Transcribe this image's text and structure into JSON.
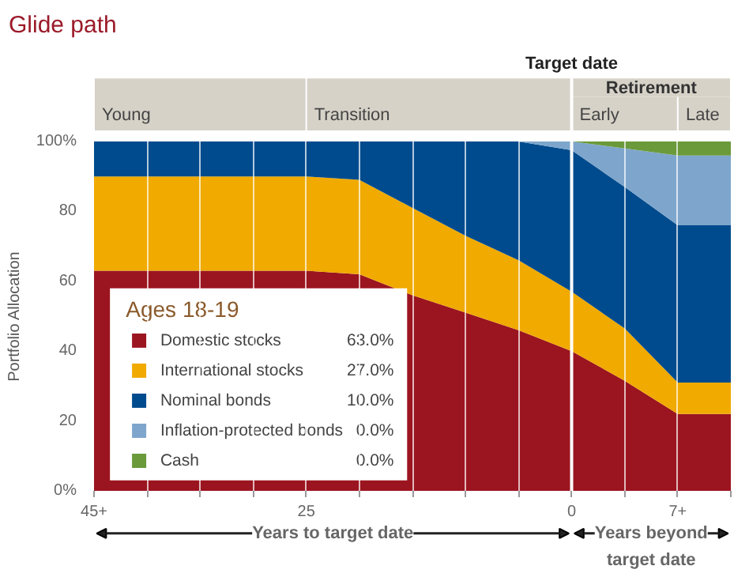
{
  "chart_data": {
    "type": "area",
    "stacked": true,
    "title": "Glide path",
    "ylabel": "Portfolio Allocation",
    "xlabel": "Years to target date",
    "legend_title": "Ages 18-19",
    "legend": "left",
    "grid": "x",
    "categories": [
      "45+",
      null,
      null,
      null,
      "25",
      null,
      null,
      null,
      null,
      "0",
      null,
      "7+",
      null
    ],
    "ylim": [
      0,
      100
    ],
    "yticks": [
      {
        "value": 0,
        "label": "0%"
      },
      20,
      40,
      60,
      80,
      {
        "value": 100,
        "label": "100%"
      }
    ],
    "series": [
      {
        "name": "Domestic stocks",
        "color": "#9b1520",
        "values": [
          63,
          63,
          63,
          63,
          63,
          62,
          56,
          51,
          46,
          40,
          31.5,
          22,
          22
        ]
      },
      {
        "name": "International stocks",
        "color": "#f0aa00",
        "values": [
          27,
          27,
          27,
          27,
          27,
          27,
          25,
          22,
          20,
          17,
          15,
          9,
          9
        ]
      },
      {
        "name": "Nominal bonds",
        "color": "#004b8d",
        "values": [
          10,
          10,
          10,
          10,
          10,
          11,
          19,
          27,
          34,
          40.5,
          40.5,
          45,
          45
        ]
      },
      {
        "name": "Inflation-protected bonds",
        "color": "#7ea6cc",
        "values": [
          0,
          0,
          0,
          0,
          0,
          0,
          0,
          0,
          0,
          2.5,
          11,
          20,
          20
        ]
      },
      {
        "name": "Cash",
        "color": "#6a9a3a",
        "values": [
          0,
          0,
          0,
          0,
          0,
          0,
          0,
          0,
          0,
          0,
          2,
          4,
          4
        ]
      }
    ],
    "ref_lines": [
      {
        "axis": "x",
        "value": "0",
        "label": "Target date",
        "color": "#ffffff"
      }
    ],
    "annotations": [
      "Young",
      "Transition",
      "Retirement",
      "Early",
      "Late",
      "Years beyond target date",
      "63.0%",
      "27.0%",
      "10.0%",
      "0.0%",
      "0.0%"
    ]
  }
}
